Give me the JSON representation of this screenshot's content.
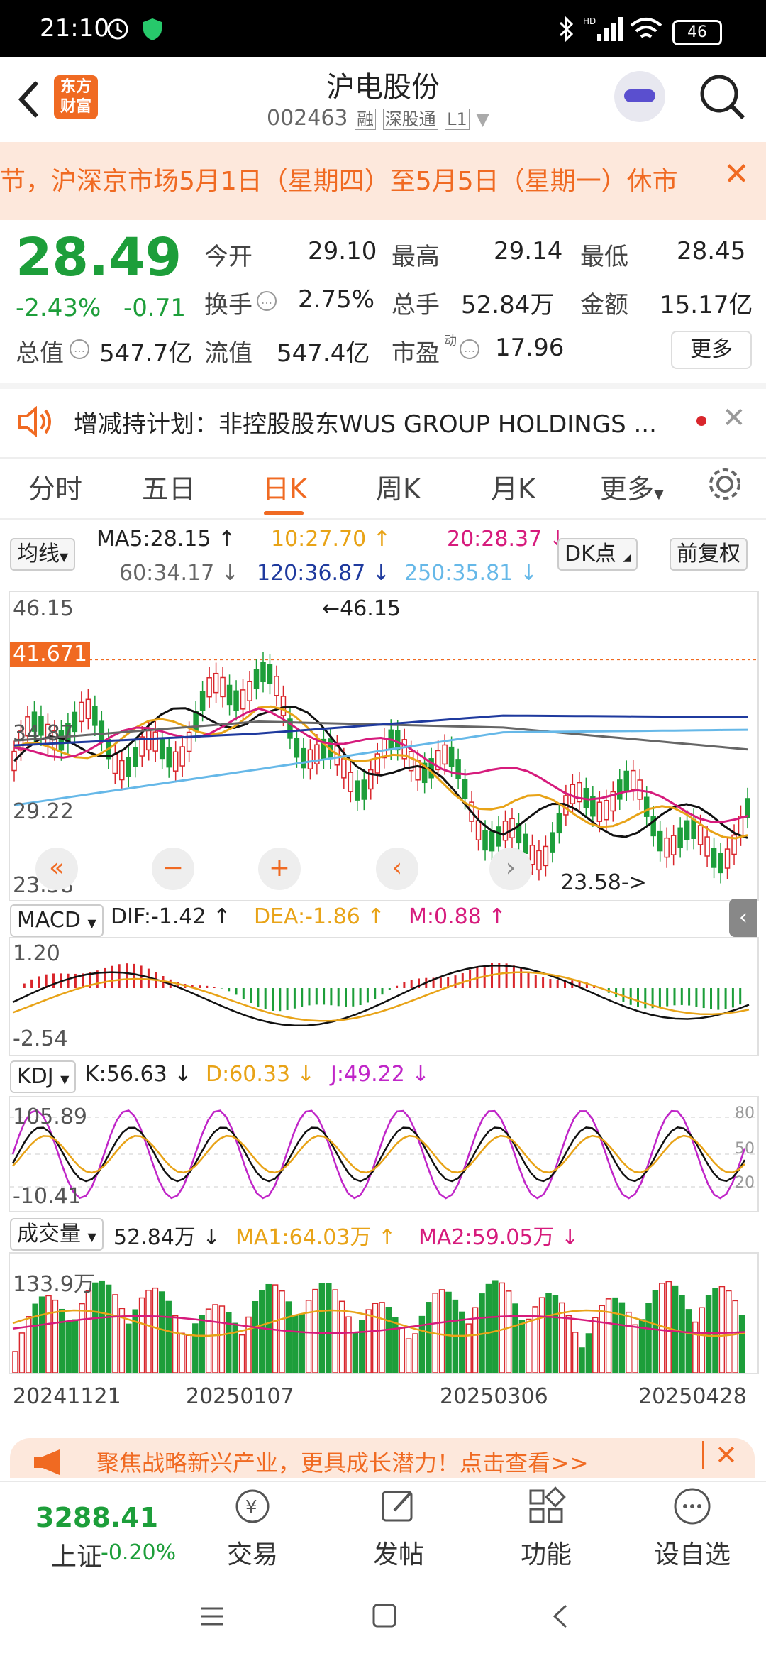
{
  "status": {
    "time": "21:10",
    "battery": "46",
    "icons": [
      "alarm-icon",
      "shield-icon",
      "bluetooth-icon",
      "hd-signal-icon",
      "wifi-icon",
      "battery-icon"
    ]
  },
  "header": {
    "logo_line1": "东方",
    "logo_line2": "财富",
    "title": "沪电股份",
    "code": "002463",
    "tag1": "融",
    "tag2": "深股通",
    "tag3": "L1"
  },
  "notice": {
    "text": "节，沪深京市场5月1日（星期四）至5月5日（星期一）休市"
  },
  "quote": {
    "price": "28.49",
    "change_pct": "-2.43%",
    "change_abs": "-0.71",
    "open_label": "今开",
    "open": "29.10",
    "high_label": "最高",
    "high": "29.14",
    "low_label": "最低",
    "low": "28.45",
    "turnover_label": "换手",
    "turnover": "2.75%",
    "volume_label": "总手",
    "volume": "52.84万",
    "amount_label": "金额",
    "amount": "15.17亿",
    "mktcap_label": "总值",
    "mktcap": "547.7亿",
    "float_label": "流值",
    "float": "547.4亿",
    "pe_label": "市盈",
    "pe_sup": "动",
    "pe": "17.96",
    "more": "更多"
  },
  "plan": {
    "text": "增减持计划：非控股股东WUS GROUP HOLDINGS ..."
  },
  "tabs": [
    "分时",
    "五日",
    "日K",
    "周K",
    "月K",
    "更多"
  ],
  "active_tab": "日K",
  "ma": {
    "select": "均线",
    "ma5": "MA5:28.15",
    "ma10": "10:27.70",
    "ma20": "20:28.37",
    "ma60": "60:34.17",
    "ma120": "120:36.87",
    "ma250": "250:35.81",
    "dk": "DK点",
    "adjust": "前复权"
  },
  "colors": {
    "accent": "#f06a22",
    "down": "#1d9e3a",
    "up": "#d9262c",
    "ma5": "#111111",
    "ma10": "#e8a317",
    "ma20": "#d61b7c",
    "ma60": "#666666",
    "ma120": "#1f3a9e",
    "ma250": "#66b8e8"
  },
  "kline": {
    "y_labels": [
      "46.15",
      "41.671",
      "34.87",
      "29.22",
      "23.58"
    ],
    "high_marker": "←46.15",
    "low_marker": "23.58->",
    "current_price": "41.671"
  },
  "chart_data": [
    {
      "type": "line",
      "title": "日K",
      "x": [
        "20241121",
        "20250107",
        "20250306",
        "20250428"
      ],
      "ylim": [
        23.58,
        46.15
      ],
      "series": [
        {
          "name": "MA5",
          "values": [
            33.2,
            37.8,
            28.3,
            28.15
          ]
        },
        {
          "name": "MA10",
          "values": [
            33.4,
            37.2,
            29.5,
            27.7
          ]
        },
        {
          "name": "MA20",
          "values": [
            33.6,
            36.8,
            32.0,
            28.37
          ]
        },
        {
          "name": "MA60",
          "values": [
            34.9,
            36.5,
            36.0,
            34.17
          ]
        },
        {
          "name": "MA120",
          "values": [
            34.5,
            35.5,
            37.0,
            36.87
          ]
        },
        {
          "name": "MA250",
          "values": [
            29.5,
            32.5,
            35.6,
            35.81
          ]
        }
      ]
    },
    {
      "type": "bar",
      "title": "MACD",
      "dif": "DIF:-1.42",
      "dea": "DEA:-1.86",
      "m": "M:0.88",
      "ylim": [
        -2.54,
        1.2
      ],
      "y_labels": [
        "1.20",
        "-2.54"
      ]
    },
    {
      "type": "line",
      "title": "KDJ",
      "k": "K:56.63",
      "d": "D:60.33",
      "j": "J:49.22",
      "ylim": [
        -10.41,
        105.89
      ],
      "y_labels": [
        "105.89",
        "-10.41"
      ],
      "ref_lines": [
        "80",
        "50",
        "20"
      ]
    },
    {
      "type": "bar",
      "title": "成交量",
      "vol": "52.84万",
      "ma1": "MA1:64.03万",
      "ma2": "MA2:59.05万",
      "y_labels": [
        "133.9万"
      ],
      "x": [
        "20241121",
        "20250107",
        "20250306",
        "20250428"
      ]
    }
  ],
  "ad": {
    "text": "聚焦战略新兴产业，更具成长潜力！点击查看>>"
  },
  "bottom": {
    "index_value": "3288.41",
    "index_name": "上证",
    "index_change": "-0.20%",
    "items": [
      "交易",
      "发帖",
      "功能",
      "设自选"
    ]
  }
}
